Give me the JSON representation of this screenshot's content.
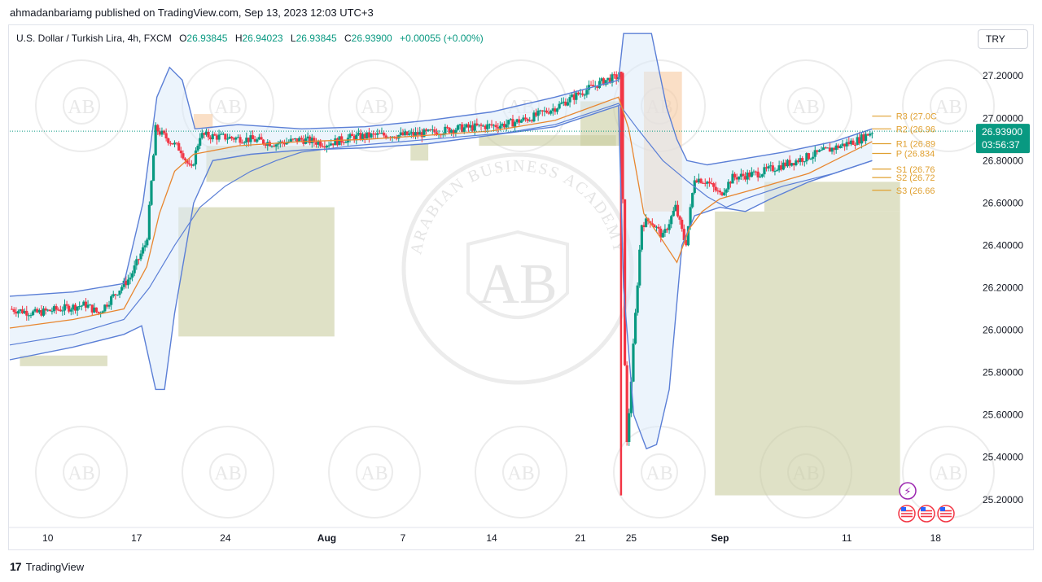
{
  "publisher": "ahmadanbariamg published on TradingView.com, Sep 13, 2023 12:03 UTC+3",
  "legend": {
    "symbol": "U.S. Dollar / Turkish Lira, 4h, FXCM",
    "o_label": "O",
    "o": "26.93845",
    "h_label": "H",
    "h": "26.94023",
    "l_label": "L",
    "l": "26.93845",
    "c_label": "C",
    "c": "26.93900",
    "change": "+0.00055 (+0.00%)"
  },
  "currency_button": "TRY",
  "current_price": {
    "price": "26.93900",
    "countdown": "03:56:37",
    "color": "#089981"
  },
  "footer": {
    "brand": "TradingView",
    "logo_glyph": "17"
  },
  "watermark": {
    "brand": "AB",
    "arc_text": "ARABIAN BUSINESS ACADEMY"
  },
  "colors": {
    "up": "#089981",
    "down": "#f23645",
    "bollinger": "#5b7fd6",
    "basis": "#e8862f",
    "pivot": "#e0a030",
    "zone_green": "#c9cda0",
    "zone_orange": "#f6c9a0",
    "band_fill": "#dcebf9"
  },
  "chart_data": {
    "type": "candlestick",
    "title": "U.S. Dollar / Turkish Lira, 4h, FXCM",
    "ylim": [
      25.08,
      27.32
    ],
    "y_ticks": [
      "27.20000",
      "27.00000",
      "26.80000",
      "26.60000",
      "26.40000",
      "26.20000",
      "26.00000",
      "25.80000",
      "25.60000",
      "25.40000",
      "25.20000"
    ],
    "x_ticks": [
      {
        "label": "10",
        "bold": false
      },
      {
        "label": "17",
        "bold": false
      },
      {
        "label": "24",
        "bold": false
      },
      {
        "label": "Aug",
        "bold": true
      },
      {
        "label": "7",
        "bold": false
      },
      {
        "label": "14",
        "bold": false
      },
      {
        "label": "21",
        "bold": false
      },
      {
        "label": "25",
        "bold": false
      },
      {
        "label": "Sep",
        "bold": true
      },
      {
        "label": "11",
        "bold": false
      },
      {
        "label": "18",
        "bold": false
      }
    ],
    "x_tick_days": [
      10,
      17,
      24,
      32,
      38,
      45,
      52,
      56,
      63,
      73,
      80
    ],
    "x_range_days": [
      7,
      83
    ],
    "price_path": [
      [
        7,
        26.1
      ],
      [
        9,
        26.08
      ],
      [
        11,
        26.1
      ],
      [
        13,
        26.12
      ],
      [
        14,
        26.08
      ],
      [
        15,
        26.15
      ],
      [
        16.5,
        26.25
      ],
      [
        17.8,
        26.42
      ],
      [
        18.5,
        26.95
      ],
      [
        19.5,
        26.9
      ],
      [
        20.5,
        26.85
      ],
      [
        21.3,
        26.75
      ],
      [
        22,
        26.92
      ],
      [
        24,
        26.91
      ],
      [
        26,
        26.9
      ],
      [
        28,
        26.88
      ],
      [
        30,
        26.9
      ],
      [
        32,
        26.88
      ],
      [
        34,
        26.91
      ],
      [
        36,
        26.92
      ],
      [
        38,
        26.92
      ],
      [
        40,
        26.93
      ],
      [
        42,
        26.95
      ],
      [
        44,
        26.96
      ],
      [
        46,
        26.97
      ],
      [
        48,
        27.0
      ],
      [
        50,
        27.05
      ],
      [
        52,
        27.12
      ],
      [
        54,
        27.18
      ],
      [
        55.2,
        27.2
      ],
      [
        55.6,
        25.4
      ],
      [
        56.2,
        25.95
      ],
      [
        56.8,
        26.5
      ],
      [
        57.5,
        26.52
      ],
      [
        58.5,
        26.44
      ],
      [
        59.5,
        26.58
      ],
      [
        60.3,
        26.4
      ],
      [
        61,
        26.72
      ],
      [
        62,
        26.7
      ],
      [
        63,
        26.64
      ],
      [
        64,
        26.72
      ],
      [
        66,
        26.74
      ],
      [
        68,
        26.78
      ],
      [
        70,
        26.82
      ],
      [
        72,
        26.86
      ],
      [
        74,
        26.9
      ],
      [
        75,
        26.939
      ]
    ],
    "bollinger_upper": [
      [
        7,
        26.16
      ],
      [
        12,
        26.18
      ],
      [
        16,
        26.22
      ],
      [
        17.5,
        26.6
      ],
      [
        18.6,
        27.1
      ],
      [
        19.6,
        27.24
      ],
      [
        20.6,
        27.18
      ],
      [
        21.6,
        26.95
      ],
      [
        25,
        26.97
      ],
      [
        30,
        26.95
      ],
      [
        35,
        26.96
      ],
      [
        40,
        26.99
      ],
      [
        45,
        27.03
      ],
      [
        50,
        27.1
      ],
      [
        55,
        27.18
      ],
      [
        55.4,
        27.4
      ],
      [
        56.4,
        27.4
      ],
      [
        57.6,
        27.4
      ],
      [
        58.8,
        27.05
      ],
      [
        59.6,
        26.9
      ],
      [
        60.4,
        26.8
      ],
      [
        62,
        26.78
      ],
      [
        64,
        26.8
      ],
      [
        68,
        26.84
      ],
      [
        72,
        26.89
      ],
      [
        75,
        26.95
      ]
    ],
    "bollinger_lower": [
      [
        7,
        25.86
      ],
      [
        12,
        25.92
      ],
      [
        16,
        25.98
      ],
      [
        17.4,
        26.02
      ],
      [
        18.5,
        25.72
      ],
      [
        19.2,
        25.72
      ],
      [
        20,
        26.08
      ],
      [
        21.5,
        26.6
      ],
      [
        23,
        26.8
      ],
      [
        26,
        26.83
      ],
      [
        30,
        26.85
      ],
      [
        35,
        26.86
      ],
      [
        40,
        26.88
      ],
      [
        45,
        26.92
      ],
      [
        50,
        26.96
      ],
      [
        55,
        27.06
      ],
      [
        55.4,
        26.2
      ],
      [
        56.2,
        25.6
      ],
      [
        57.2,
        25.44
      ],
      [
        58,
        25.46
      ],
      [
        59,
        25.72
      ],
      [
        60,
        26.4
      ],
      [
        61,
        26.54
      ],
      [
        63,
        26.58
      ],
      [
        65,
        26.56
      ],
      [
        67,
        26.62
      ],
      [
        70,
        26.7
      ],
      [
        73,
        26.76
      ],
      [
        75,
        26.8
      ]
    ],
    "basis": [
      [
        7,
        26.01
      ],
      [
        12,
        26.05
      ],
      [
        16,
        26.1
      ],
      [
        17.8,
        26.3
      ],
      [
        18.8,
        26.55
      ],
      [
        20,
        26.75
      ],
      [
        21.5,
        26.83
      ],
      [
        25,
        26.87
      ],
      [
        30,
        26.89
      ],
      [
        35,
        26.9
      ],
      [
        40,
        26.92
      ],
      [
        45,
        26.94
      ],
      [
        50,
        26.99
      ],
      [
        55,
        27.1
      ],
      [
        55.8,
        26.95
      ],
      [
        57,
        26.55
      ],
      [
        58.5,
        26.42
      ],
      [
        59.6,
        26.32
      ],
      [
        60.6,
        26.48
      ],
      [
        61.6,
        26.56
      ],
      [
        63,
        26.62
      ],
      [
        66,
        26.67
      ],
      [
        70,
        26.74
      ],
      [
        75,
        26.89
      ]
    ],
    "slow_ma": [
      [
        7,
        25.93
      ],
      [
        12,
        25.98
      ],
      [
        16,
        26.05
      ],
      [
        18,
        26.2
      ],
      [
        20,
        26.4
      ],
      [
        22,
        26.58
      ],
      [
        24,
        26.68
      ],
      [
        26,
        26.75
      ],
      [
        28,
        26.8
      ],
      [
        30,
        26.84
      ],
      [
        34,
        26.87
      ],
      [
        38,
        26.89
      ],
      [
        42,
        26.91
      ],
      [
        46,
        26.93
      ],
      [
        50,
        26.97
      ],
      [
        55,
        27.07
      ],
      [
        56.5,
        26.95
      ],
      [
        58.5,
        26.8
      ],
      [
        60.5,
        26.7
      ],
      [
        62,
        26.63
      ],
      [
        63.5,
        26.58
      ],
      [
        65,
        26.62
      ],
      [
        68,
        26.68
      ],
      [
        72,
        26.74
      ],
      [
        75,
        26.8
      ]
    ],
    "zones": [
      {
        "color": "green",
        "x0": 7.8,
        "x1": 14.7,
        "y0": 25.83,
        "y1": 25.88
      },
      {
        "color": "green",
        "x0": 20.3,
        "x1": 32.6,
        "y0": 25.97,
        "y1": 26.58
      },
      {
        "color": "green",
        "x0": 22.5,
        "x1": 31.5,
        "y0": 26.7,
        "y1": 26.87
      },
      {
        "color": "green",
        "x0": 38.6,
        "x1": 40.0,
        "y0": 26.8,
        "y1": 26.88
      },
      {
        "color": "green",
        "x0": 44.0,
        "x1": 54.8,
        "y0": 26.87,
        "y1": 26.92
      },
      {
        "color": "green",
        "x0": 52.0,
        "x1": 55.2,
        "y0": 26.87,
        "y1": 27.08
      },
      {
        "color": "green",
        "x0": 62.6,
        "x1": 77.2,
        "y0": 25.22,
        "y1": 26.56
      },
      {
        "color": "green",
        "x0": 66.5,
        "x1": 77.2,
        "y0": 26.56,
        "y1": 26.7
      },
      {
        "color": "orange",
        "x0": 21.5,
        "x1": 23.0,
        "y0": 26.95,
        "y1": 27.02
      },
      {
        "color": "orange",
        "x0": 57.0,
        "x1": 60.0,
        "y0": 26.56,
        "y1": 27.22
      }
    ],
    "pivots": [
      {
        "label": "R3 (27.0C",
        "value": 27.01
      },
      {
        "label": "R2 (26.96",
        "value": 26.95
      },
      {
        "label": "R1 (26.89",
        "value": 26.88
      },
      {
        "label": "P (26.834",
        "value": 26.834
      },
      {
        "label": "S1 (26.76",
        "value": 26.76
      },
      {
        "label": "S2 (26.72",
        "value": 26.72
      },
      {
        "label": "S3 (26.66",
        "value": 26.66
      }
    ],
    "pivot_x_range": [
      75.0,
      76.5
    ],
    "events_flash_icons": 1,
    "events_us_flags": 3
  }
}
